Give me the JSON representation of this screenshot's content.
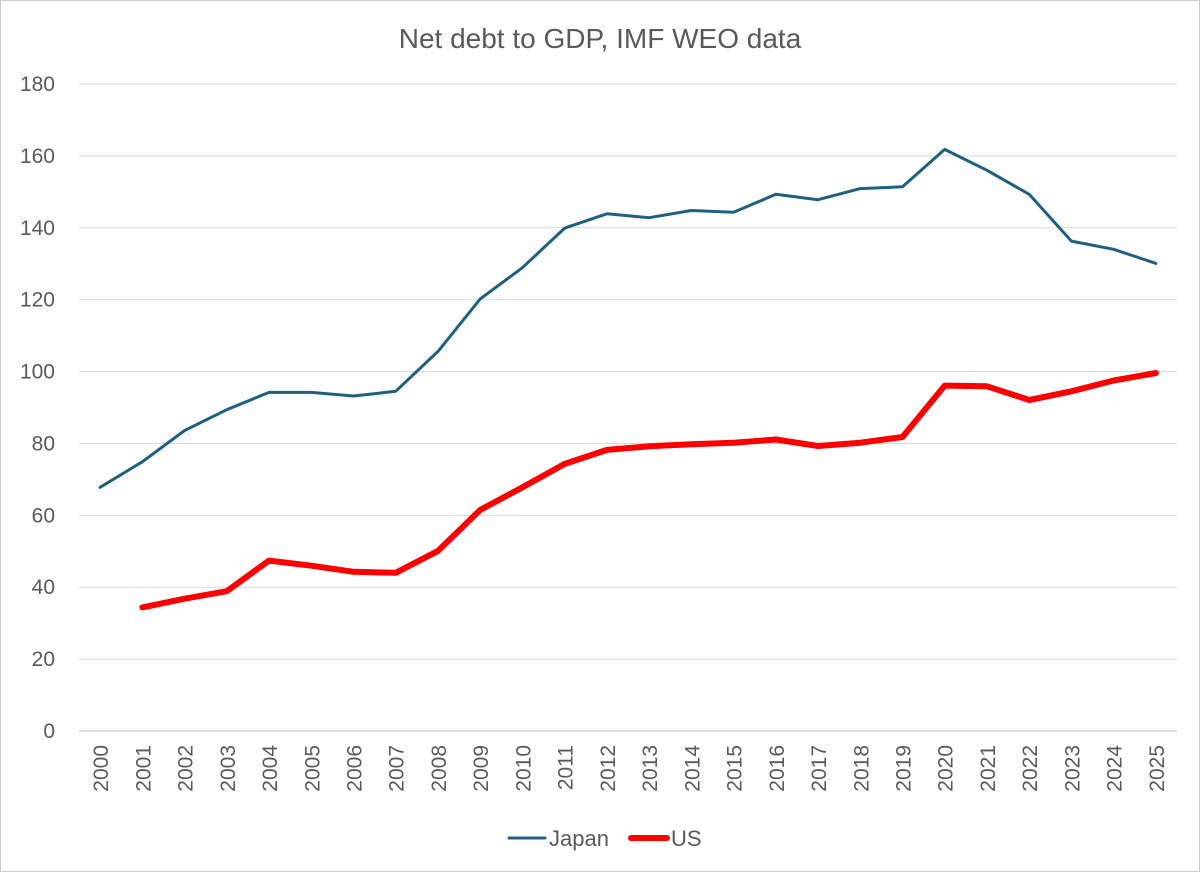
{
  "chart_data": {
    "type": "line",
    "title": "Net debt to GDP, IMF WEO data",
    "xlabel": "",
    "ylabel": "",
    "ylim": [
      0,
      180
    ],
    "yticks": [
      0,
      20,
      40,
      60,
      80,
      100,
      120,
      140,
      160,
      180
    ],
    "categories": [
      "2000",
      "2001",
      "2002",
      "2003",
      "2004",
      "2005",
      "2006",
      "2007",
      "2008",
      "2009",
      "2010",
      "2011",
      "2012",
      "2013",
      "2014",
      "2015",
      "2016",
      "2017",
      "2018",
      "2019",
      "2020",
      "2021",
      "2022",
      "2023",
      "2024",
      "2025"
    ],
    "series": [
      {
        "name": "Japan",
        "color": "#1f5f7f",
        "values": [
          67.8,
          74.9,
          83.6,
          89.4,
          94.2,
          94.2,
          93.2,
          94.5,
          105.6,
          120.2,
          128.9,
          139.9,
          143.9,
          142.8,
          144.8,
          144.3,
          149.3,
          147.8,
          150.9,
          151.4,
          161.8,
          156.0,
          149.3,
          136.3,
          134.0,
          130.1
        ]
      },
      {
        "name": "US",
        "color": "#ff0000",
        "values": [
          null,
          34.4,
          36.8,
          38.9,
          47.4,
          46.0,
          44.3,
          44.0,
          50.1,
          61.5,
          67.8,
          74.3,
          78.2,
          79.2,
          79.8,
          80.2,
          81.1,
          79.3,
          80.2,
          81.8,
          96.1,
          95.9,
          92.1,
          94.5,
          97.5,
          99.6
        ]
      }
    ],
    "legend": "bottom"
  }
}
